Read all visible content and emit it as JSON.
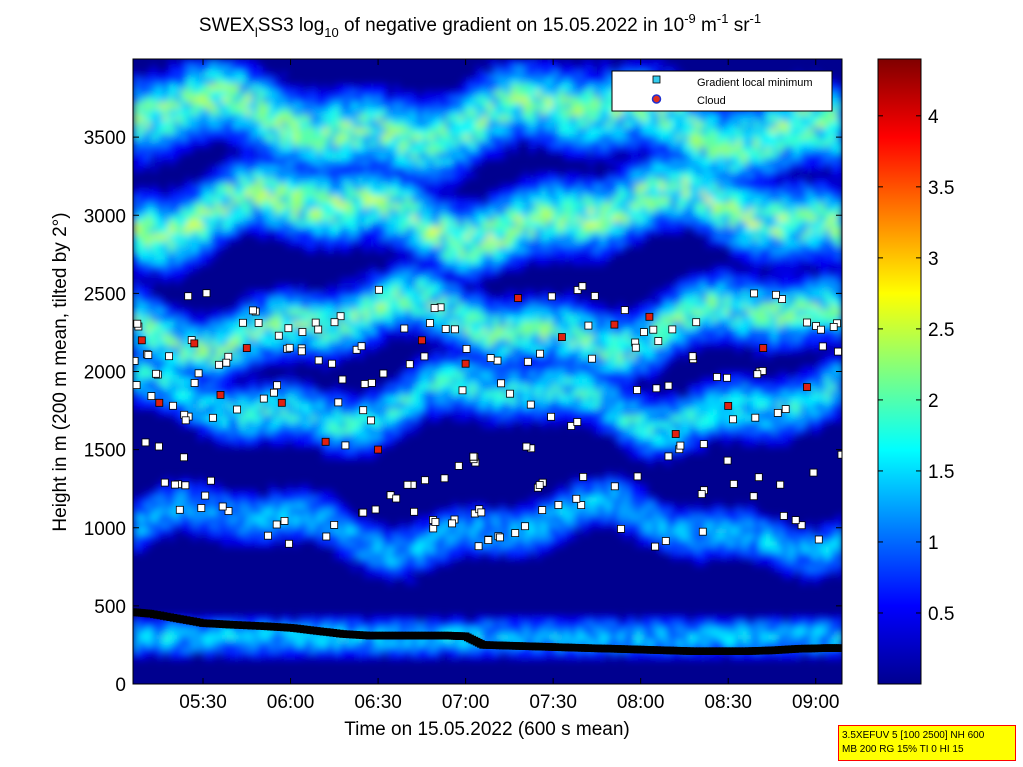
{
  "title": {
    "prefix": "SWEX",
    "sub1": "l",
    "part2": "SS3 log",
    "sub2": "10",
    "part3": " of negative gradient on 15.05.2022 in 10",
    "sup1": "-9",
    "part4": " m",
    "sup2": "-1",
    "part5": " sr",
    "sup3": "-1"
  },
  "info_box": {
    "line1": "3.5XEFUV 5 [100 2500] NH 600",
    "line2": "MB 200 RG 15% TI 0 HI 15"
  },
  "legend": {
    "entries": [
      {
        "label": "Gradient local minimum",
        "color": "#33ccee"
      },
      {
        "label": "Cloud",
        "color": "#e03020"
      }
    ]
  },
  "colors": {
    "low": "#00008f",
    "mid": "#00c0ff",
    "high": "#e8f040",
    "marker_white": "#ffffff",
    "marker_red": "#e02010",
    "marker_black": "#000000"
  },
  "chart_data": {
    "type": "heatmap",
    "xlabel": "Time on 15.05.2022 (600 s mean)",
    "ylabel": "Height in m (200 m mean, tilted by 2°)",
    "x_ticks": [
      "05:30",
      "06:00",
      "06:30",
      "07:00",
      "07:30",
      "08:00",
      "08:30",
      "09:00"
    ],
    "x_tick_hours": [
      5.5,
      6.0,
      6.5,
      7.0,
      7.5,
      8.0,
      8.5,
      9.0
    ],
    "xlim_hours": [
      5.1,
      9.15
    ],
    "y_ticks": [
      "0",
      "500",
      "1000",
      "1500",
      "2000",
      "2500",
      "3000",
      "3500"
    ],
    "y_tick_values": [
      0,
      500,
      1000,
      1500,
      2000,
      2500,
      3000,
      3500
    ],
    "ylim": [
      0,
      4000
    ],
    "colorbar": {
      "ticks": [
        "0.5",
        "1",
        "1.5",
        "2",
        "2.5",
        "3",
        "3.5",
        "4"
      ],
      "tick_values": [
        0.5,
        1,
        1.5,
        2,
        2.5,
        3,
        3.5,
        4
      ],
      "range": [
        0,
        4.4
      ],
      "colormap": "jet"
    },
    "layers": [
      {
        "height": 1000,
        "mean_value": 1.4
      },
      {
        "height": 1800,
        "mean_value": 1.7
      },
      {
        "height": 2300,
        "mean_value": 2.0
      },
      {
        "height": 3000,
        "mean_value": 2.2
      },
      {
        "height": 3600,
        "mean_value": 2.1
      }
    ],
    "series": [
      {
        "name": "Gradient local minimum",
        "x_hours": [
          5.1,
          5.2,
          5.35,
          5.5,
          5.65,
          5.85,
          6.0,
          6.15,
          6.3,
          6.45,
          6.6,
          6.75,
          6.9,
          7.0,
          7.1,
          7.25,
          7.4,
          7.55,
          7.7,
          7.85,
          8.0,
          8.15,
          8.3,
          8.45,
          8.6,
          8.75,
          8.9,
          9.05,
          9.15
        ],
        "heights": [
          460,
          450,
          420,
          390,
          380,
          370,
          360,
          340,
          320,
          310,
          310,
          310,
          310,
          305,
          250,
          245,
          240,
          235,
          230,
          225,
          220,
          215,
          210,
          210,
          210,
          215,
          225,
          230,
          230
        ]
      },
      {
        "name": "Cloud",
        "x_hours": [
          5.15,
          5.25,
          5.45,
          5.6,
          5.75,
          5.95,
          6.2,
          6.5,
          6.75,
          7.0,
          7.3,
          7.55,
          7.85,
          8.05,
          8.2,
          8.5,
          8.7,
          8.95
        ],
        "heights": [
          2200,
          1800,
          2180,
          1850,
          2150,
          1800,
          1550,
          1500,
          2200,
          2050,
          2470,
          2220,
          2300,
          2350,
          1600,
          1780,
          2150,
          1900
        ]
      }
    ]
  }
}
